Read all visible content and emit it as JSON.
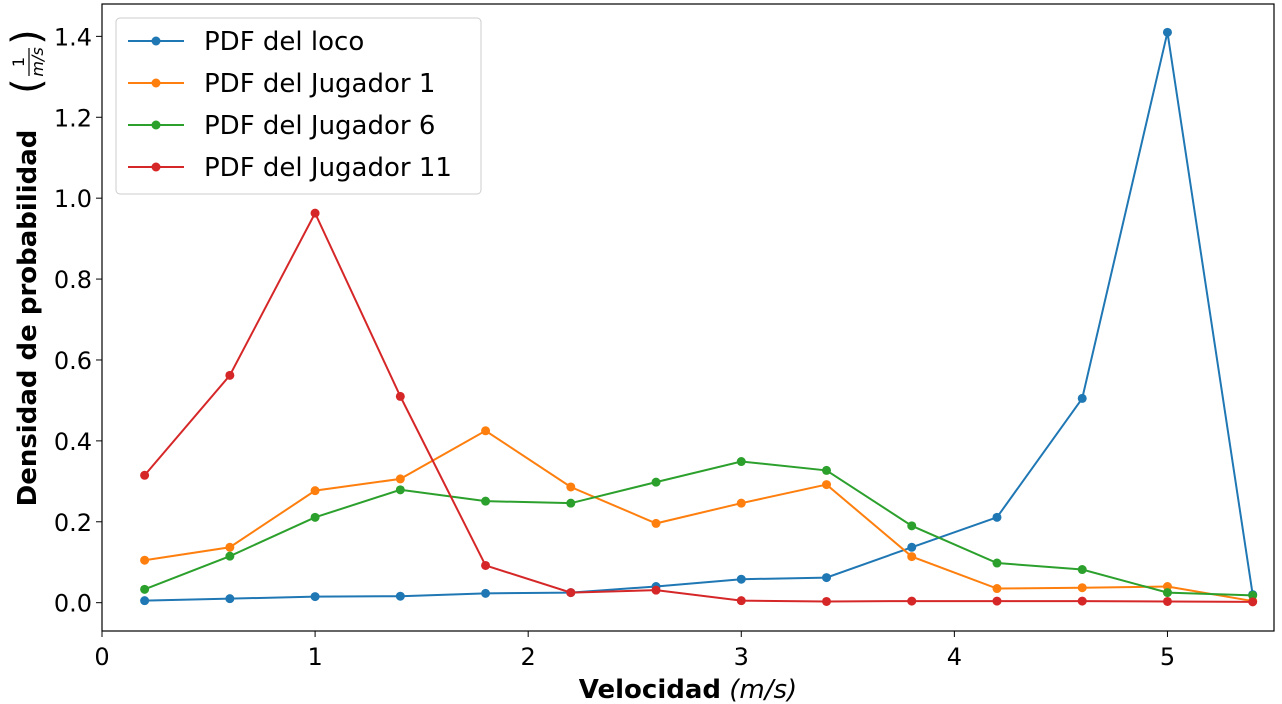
{
  "chart_data": {
    "type": "line",
    "xlabel": {
      "bold": "Velocidad",
      "unit": "(m/s)"
    },
    "ylabel": {
      "bold": "Densidad de probabilidad",
      "unit_num": "1",
      "unit_den": "m/s"
    },
    "xlim": [
      0,
      5.5
    ],
    "ylim": [
      -0.07,
      1.48
    ],
    "xticks": [
      "0",
      "1",
      "2",
      "3",
      "4",
      "5"
    ],
    "yticks": [
      "0.0",
      "0.2",
      "0.4",
      "0.6",
      "0.8",
      "1.0",
      "1.2",
      "1.4"
    ],
    "grid": false,
    "legend_position": "top-left",
    "x": [
      0.2,
      0.6,
      1.0,
      1.4,
      1.8,
      2.2,
      2.6,
      3.0,
      3.4,
      3.8,
      4.2,
      4.6,
      5.0,
      5.4
    ],
    "series": [
      {
        "name": "PDF del loco",
        "color": "#1f77b4",
        "values": [
          0.005,
          0.01,
          0.015,
          0.016,
          0.023,
          0.025,
          0.04,
          0.058,
          0.062,
          0.137,
          0.211,
          0.505,
          1.41,
          0.02
        ]
      },
      {
        "name": "PDF del Jugador 1",
        "color": "#ff7f0e",
        "values": [
          0.105,
          0.137,
          0.277,
          0.306,
          0.425,
          0.286,
          0.196,
          0.246,
          0.292,
          0.114,
          0.035,
          0.037,
          0.04,
          0.004
        ]
      },
      {
        "name": "PDF del Jugador 6",
        "color": "#2ca02c",
        "values": [
          0.033,
          0.115,
          0.211,
          0.279,
          0.251,
          0.246,
          0.298,
          0.349,
          0.327,
          0.19,
          0.098,
          0.082,
          0.025,
          0.018
        ]
      },
      {
        "name": "PDF del Jugador 11",
        "color": "#d62728",
        "values": [
          0.315,
          0.562,
          0.963,
          0.51,
          0.092,
          0.025,
          0.031,
          0.005,
          0.003,
          0.004,
          0.004,
          0.004,
          0.003,
          0.002
        ]
      }
    ]
  }
}
